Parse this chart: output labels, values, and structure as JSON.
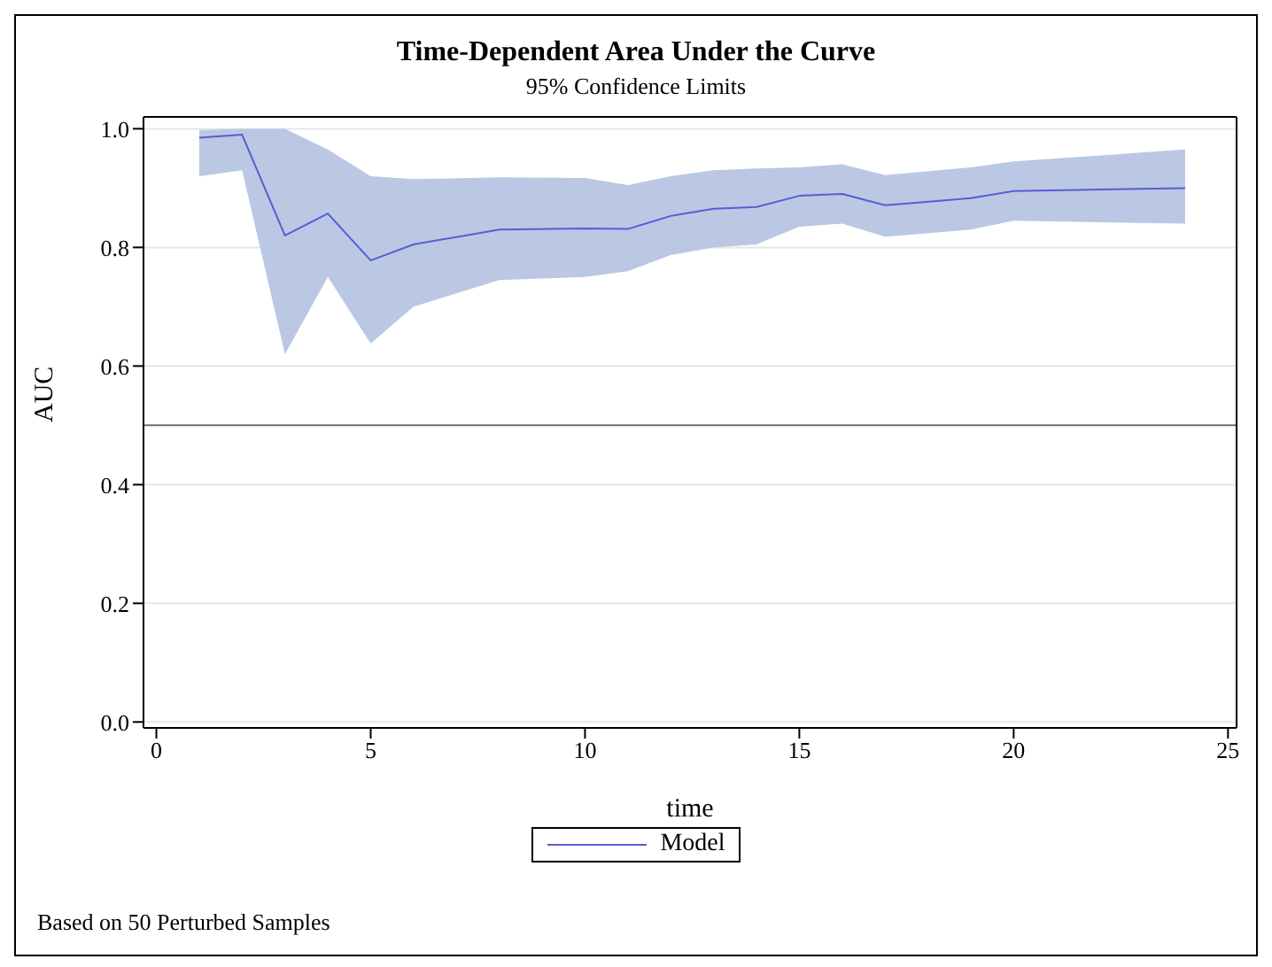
{
  "chart_data": {
    "type": "line",
    "title": "Time-Dependent Area Under the Curve",
    "subtitle": "95% Confidence Limits",
    "xlabel": "time",
    "ylabel": "AUC",
    "x": [
      1,
      2,
      3,
      4,
      5,
      6,
      8,
      10,
      11,
      12,
      13,
      14,
      15,
      16,
      17,
      19,
      20,
      24
    ],
    "series": [
      {
        "name": "Model",
        "color": "#5b5bd6",
        "values": [
          0.985,
          0.99,
          0.82,
          0.857,
          0.778,
          0.805,
          0.83,
          0.832,
          0.831,
          0.853,
          0.865,
          0.868,
          0.887,
          0.89,
          0.871,
          0.883,
          0.895,
          0.9
        ],
        "lower": [
          0.92,
          0.93,
          0.62,
          0.75,
          0.638,
          0.7,
          0.745,
          0.75,
          0.76,
          0.787,
          0.8,
          0.805,
          0.835,
          0.84,
          0.818,
          0.83,
          0.845,
          0.84
        ],
        "upper": [
          0.998,
          1.0,
          1.0,
          0.965,
          0.92,
          0.915,
          0.918,
          0.917,
          0.905,
          0.92,
          0.93,
          0.933,
          0.935,
          0.94,
          0.922,
          0.935,
          0.945,
          0.965
        ]
      }
    ],
    "xlim": [
      -0.3,
      25.2
    ],
    "xticks": [
      0,
      5,
      10,
      15,
      20,
      25
    ],
    "ylim": [
      -0.01,
      1.02
    ],
    "yticks": [
      {
        "value": 0,
        "label": "0.0"
      },
      {
        "value": 0.2,
        "label": "0.2"
      },
      {
        "value": 0.4,
        "label": "0.4"
      },
      {
        "value": 0.6,
        "label": "0.6"
      },
      {
        "value": 0.8,
        "label": "0.8"
      },
      {
        "value": 1.0,
        "label": "1.0"
      }
    ],
    "grid": "y",
    "legend": "bottom",
    "marker": "none",
    "line_style": "solid",
    "ref_lines": [
      {
        "axis": "y",
        "value": 0.5,
        "color": "#707070"
      }
    ],
    "annotations": [
      "Based on 50 Perturbed Samples"
    ]
  }
}
